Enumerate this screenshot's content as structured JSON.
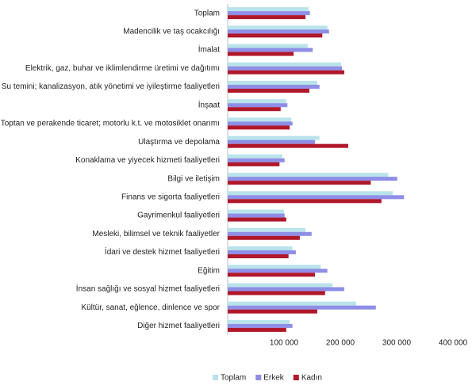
{
  "chart_data": {
    "type": "hbar",
    "categories": [
      "Toplam",
      "Madencilik ve taş ocakcılığı",
      "İmalat",
      "Elektrik, gaz, buhar ve iklimlendirme üretimi ve dağıtımı",
      "Su temini; kanalizasyon, atık yönetimi ve iyileştirme faaliyetleri",
      "İnşaat",
      "Toptan ve perakende ticaret; motorlu k.t. ve motosiklet onarımı",
      "Ulaştırma ve depolama",
      "Konaklama ve yiyecek hizmeti faaliyetleri",
      "Bilgi ve iletişim",
      "Finans ve sigorta faaliyetleri",
      "Gayrimenkul faaliyetleri",
      "Mesleki, bilimsel ve teknik faaliyetler",
      "İdari ve destek hizmet faaliyetleri",
      "Eğitim",
      "İnsan sağlığı ve sosyal hizmet faaliyetleri",
      "Kültür, sanat, eğlence, dinlence ve spor",
      "Diğer hizmet faaliyetleri"
    ],
    "series": [
      {
        "name": "Toplam",
        "color": "#b9e3ea",
        "values": [
          144000,
          177000,
          142000,
          201000,
          159000,
          104000,
          113000,
          163000,
          97000,
          285000,
          293000,
          100000,
          138000,
          115000,
          165000,
          186000,
          228000,
          110000
        ]
      },
      {
        "name": "Erkek",
        "color": "#8e8ee6",
        "values": [
          146000,
          180000,
          151000,
          203000,
          163000,
          106000,
          115000,
          155000,
          101000,
          301000,
          313000,
          101000,
          149000,
          121000,
          177000,
          207000,
          263000,
          115000
        ]
      },
      {
        "name": "Kadın",
        "color": "#b0172a",
        "values": [
          138000,
          168000,
          117000,
          207000,
          145000,
          94000,
          110000,
          214000,
          92000,
          254000,
          273000,
          104000,
          128000,
          108000,
          155000,
          173000,
          159000,
          104000
        ]
      }
    ],
    "xlim": [
      0,
      400000
    ],
    "xticks": [
      {
        "value": 100000,
        "label": "100 000"
      },
      {
        "value": 200000,
        "label": "200 000"
      },
      {
        "value": 300000,
        "label": "300 000"
      },
      {
        "value": 400000,
        "label": "400 000"
      }
    ],
    "legend": "bottom"
  }
}
